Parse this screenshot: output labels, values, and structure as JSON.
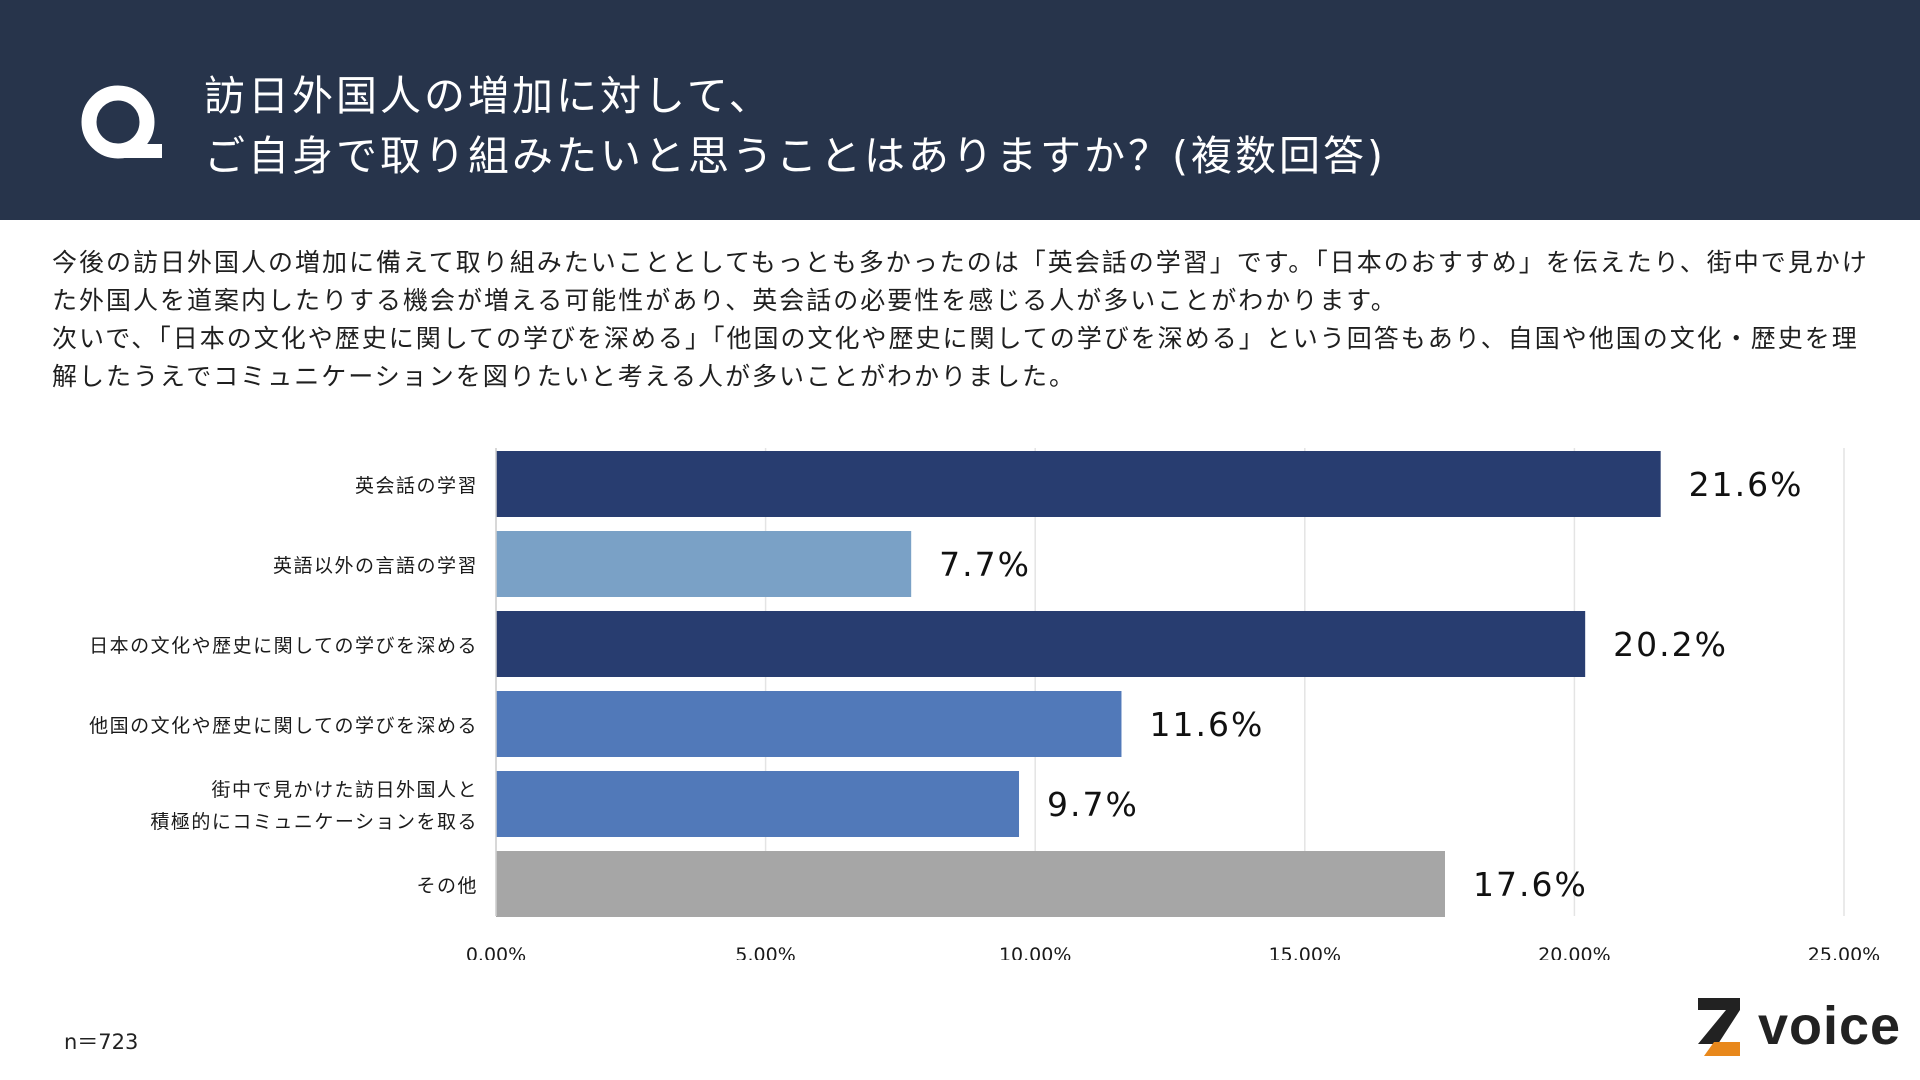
{
  "header": {
    "icon": "Q",
    "title_line1": "訪日外国人の増加に対して、",
    "title_line2": "ご自身で取り組みたいと思うことはありますか？(複数回答)"
  },
  "intro": {
    "p1": "今後の訪日外国人の増加に備えて取り組みたいこととしてもっとも多かったのは「英会話の学習」です。「日本のおすすめ」を伝えたり、街中で見かけた外国人を道案内したりする機会が増える可能性があり、英会話の必要性を感じる人が多いことがわかります。",
    "p2": "次いで、「日本の文化や歴史に関しての学びを深める」「他国の文化や歴史に関しての学びを深める」という回答もあり、自国や他国の文化・歴史を理解したうえでコミュニケーションを図りたいと考える人が多いことがわかりました。"
  },
  "chart_data": {
    "type": "bar",
    "orientation": "horizontal",
    "categories": [
      "英会話の学習",
      "英語以外の言語の学習",
      "日本の文化や歴史に関しての学びを深める",
      "他国の文化や歴史に関しての学びを深める",
      "街中で見かけた訪日外国人と\n積極的にコミュニケーションを取る",
      "その他"
    ],
    "values": [
      21.6,
      7.7,
      20.2,
      11.6,
      9.7,
      17.6
    ],
    "value_labels": [
      "21.6%",
      "7.7%",
      "20.2%",
      "11.6%",
      "9.7%",
      "17.6%"
    ],
    "colors": [
      "#283d70",
      "#7aa1c6",
      "#283d70",
      "#5179b9",
      "#5179b9",
      "#a6a6a6"
    ],
    "xlim": [
      0,
      25
    ],
    "xticks": [
      "0.00%",
      "5.00%",
      "10.00%",
      "15.00%",
      "20.00%",
      "25.00%"
    ],
    "grid": true
  },
  "footer": {
    "n": "n＝723"
  },
  "logo": {
    "text": "voice",
    "icon": "z-logo-icon",
    "accent": "#e8881c"
  }
}
